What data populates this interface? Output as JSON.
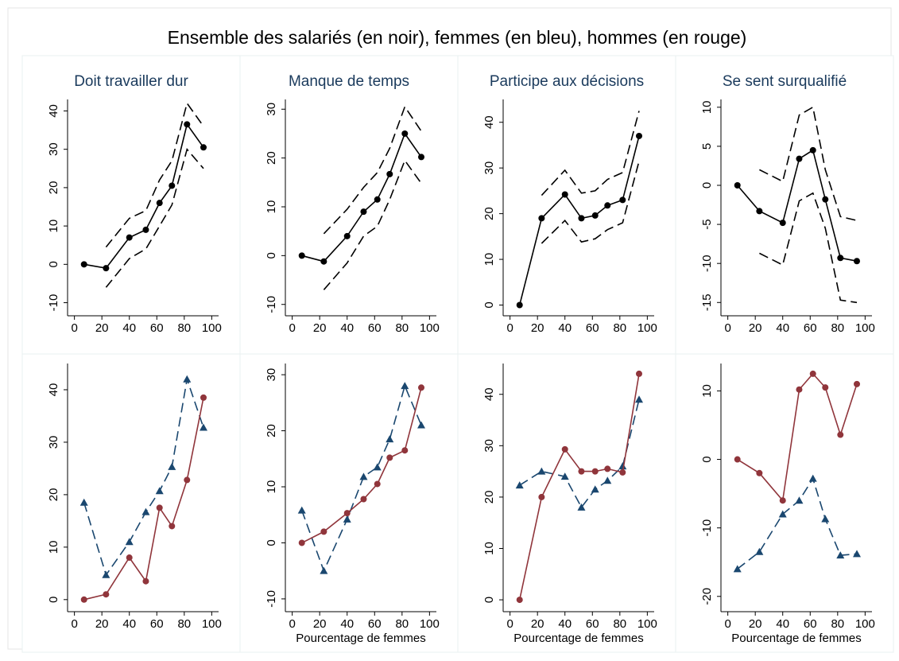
{
  "title": "Ensemble des salariés (en noir), femmes (en bleu), hommes (en rouge)",
  "chart_data": [
    {
      "type": "line",
      "title": "Doit travailler dur",
      "x": [
        7,
        23,
        40,
        52,
        62,
        71,
        82,
        94
      ],
      "xlim": [
        -5,
        105
      ],
      "xticks": [
        0,
        20,
        40,
        60,
        80,
        100
      ],
      "ylim": [
        -13,
        43
      ],
      "yticks": [
        -10,
        0,
        10,
        20,
        30,
        40
      ],
      "series": [
        {
          "color": "#000000",
          "marker": "circle",
          "dashed": false,
          "values": [
            0,
            -1,
            7,
            9,
            16,
            20.5,
            36.5,
            30.5
          ]
        },
        {
          "color": "#000000",
          "dashed": true,
          "values": [
            null,
            4.5,
            12,
            14,
            22,
            27,
            42,
            36
          ]
        },
        {
          "color": "#000000",
          "dashed": true,
          "values": [
            null,
            -6,
            1.5,
            4,
            10,
            15.5,
            30,
            25
          ]
        }
      ]
    },
    {
      "type": "line",
      "title": "Manque de temps",
      "x": [
        7,
        23,
        40,
        52,
        62,
        71,
        82,
        94
      ],
      "xlim": [
        -5,
        105
      ],
      "xticks": [
        0,
        20,
        40,
        60,
        80,
        100
      ],
      "ylim": [
        -12,
        32
      ],
      "yticks": [
        -10,
        0,
        10,
        20,
        30
      ],
      "series": [
        {
          "color": "#000000",
          "marker": "circle",
          "dashed": false,
          "values": [
            0,
            -1.2,
            4,
            9,
            11.5,
            16.7,
            25,
            20.2
          ]
        },
        {
          "color": "#000000",
          "dashed": true,
          "values": [
            null,
            4.5,
            9.5,
            14,
            17,
            22,
            30.5,
            25.5
          ]
        },
        {
          "color": "#000000",
          "dashed": true,
          "values": [
            null,
            -7,
            -1.5,
            4,
            6,
            11.5,
            19.5,
            14.8
          ]
        }
      ]
    },
    {
      "type": "line",
      "title": "Participe aux décisions",
      "x": [
        7,
        23,
        40,
        52,
        62,
        71,
        82,
        94
      ],
      "xlim": [
        -5,
        105
      ],
      "xticks": [
        0,
        20,
        40,
        60,
        80,
        100
      ],
      "ylim": [
        -2,
        45
      ],
      "yticks": [
        0,
        10,
        20,
        30,
        40
      ],
      "series": [
        {
          "color": "#000000",
          "marker": "circle",
          "dashed": false,
          "values": [
            0,
            19,
            24.2,
            19,
            19.6,
            21.8,
            23,
            37
          ]
        },
        {
          "color": "#000000",
          "dashed": true,
          "values": [
            null,
            24,
            29.5,
            24.5,
            25,
            27.5,
            29,
            42.5
          ]
        },
        {
          "color": "#000000",
          "dashed": true,
          "values": [
            null,
            13.5,
            18.5,
            13.8,
            14.5,
            16.5,
            18,
            31.5
          ]
        }
      ]
    },
    {
      "type": "line",
      "title": "Se sent surqualifié",
      "x": [
        7,
        23,
        40,
        52,
        62,
        71,
        82,
        94
      ],
      "xlim": [
        -5,
        105
      ],
      "xticks": [
        0,
        20,
        40,
        60,
        80,
        100
      ],
      "ylim": [
        -16.5,
        11
      ],
      "yticks": [
        -15,
        -10,
        -5,
        0,
        5,
        10
      ],
      "series": [
        {
          "color": "#000000",
          "marker": "circle",
          "dashed": false,
          "values": [
            0,
            -3.3,
            -4.8,
            3.4,
            4.5,
            -1.8,
            -9.3,
            -9.7
          ]
        },
        {
          "color": "#000000",
          "dashed": true,
          "values": [
            null,
            2,
            0.5,
            9,
            10,
            2,
            -4,
            -4.5
          ]
        },
        {
          "color": "#000000",
          "dashed": true,
          "values": [
            null,
            -8.7,
            -10.2,
            -2,
            -1,
            -5.5,
            -14.7,
            -15
          ]
        }
      ]
    },
    {
      "type": "line",
      "x": [
        7,
        23,
        40,
        52,
        62,
        71,
        82,
        94
      ],
      "xlim": [
        -5,
        105
      ],
      "xticks": [
        0,
        20,
        40,
        60,
        80,
        100
      ],
      "ylim": [
        -2,
        45
      ],
      "yticks": [
        0,
        10,
        20,
        30,
        40
      ],
      "series": [
        {
          "color": "#1a476f",
          "marker": "triangle",
          "dashed": true,
          "values": [
            18.5,
            4.7,
            11,
            16.7,
            20.7,
            25.3,
            42,
            32.8
          ]
        },
        {
          "color": "#90353b",
          "marker": "circle",
          "dashed": false,
          "values": [
            0,
            1,
            8,
            3.5,
            17.5,
            14,
            22.8,
            38.5
          ]
        }
      ]
    },
    {
      "type": "line",
      "xlabel": "Pourcentage de femmes",
      "x": [
        7,
        23,
        40,
        52,
        62,
        71,
        82,
        94
      ],
      "xlim": [
        -5,
        105
      ],
      "xticks": [
        0,
        20,
        40,
        60,
        80,
        100
      ],
      "ylim": [
        -12,
        32
      ],
      "yticks": [
        -10,
        0,
        10,
        20,
        30
      ],
      "series": [
        {
          "color": "#1a476f",
          "marker": "triangle",
          "dashed": true,
          "values": [
            5.8,
            -5,
            4.2,
            11.8,
            13.5,
            18.5,
            28,
            21
          ]
        },
        {
          "color": "#90353b",
          "marker": "circle",
          "dashed": false,
          "values": [
            0,
            2,
            5.3,
            7.8,
            10.5,
            15.2,
            16.5,
            27.7
          ]
        }
      ]
    },
    {
      "type": "line",
      "xlabel": "Pourcentage de femmes",
      "x": [
        7,
        23,
        40,
        52,
        62,
        71,
        82,
        94
      ],
      "xlim": [
        -5,
        105
      ],
      "xticks": [
        0,
        20,
        40,
        60,
        80,
        100
      ],
      "ylim": [
        -2,
        46
      ],
      "yticks": [
        0,
        10,
        20,
        30,
        40
      ],
      "series": [
        {
          "color": "#1a476f",
          "marker": "triangle",
          "dashed": true,
          "values": [
            22.3,
            25,
            24,
            18,
            21.5,
            23.2,
            26,
            39
          ]
        },
        {
          "color": "#90353b",
          "marker": "circle",
          "dashed": false,
          "values": [
            0,
            20,
            29.3,
            25,
            25,
            25.5,
            24.8,
            44
          ]
        }
      ]
    },
    {
      "type": "line",
      "xlabel": "Pourcentage de femmes",
      "x": [
        7,
        23,
        40,
        52,
        62,
        71,
        82,
        94
      ],
      "xlim": [
        -5,
        105
      ],
      "xticks": [
        0,
        20,
        40,
        60,
        80,
        100
      ],
      "ylim": [
        -22,
        14
      ],
      "yticks": [
        -20,
        -10,
        0,
        10
      ],
      "series": [
        {
          "color": "#1a476f",
          "marker": "triangle",
          "dashed": true,
          "values": [
            -16,
            -13.5,
            -8,
            -6,
            -2.8,
            -8.7,
            -14,
            -13.8
          ]
        },
        {
          "color": "#90353b",
          "marker": "circle",
          "dashed": false,
          "values": [
            0,
            -2,
            -6,
            10.2,
            12.5,
            10.5,
            3.6,
            11
          ]
        }
      ]
    }
  ]
}
